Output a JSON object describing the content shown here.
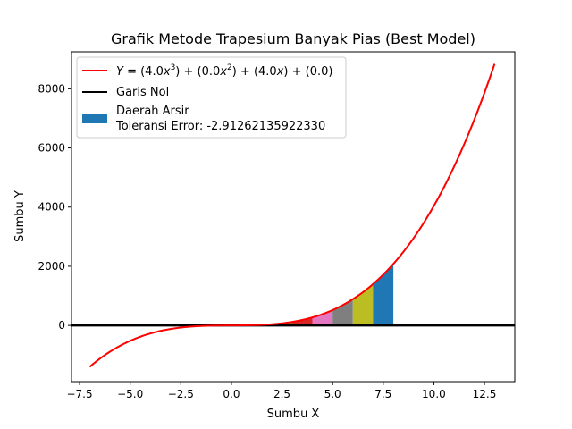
{
  "chart_data": {
    "type": "line",
    "title": "Grafik Metode Trapesium Banyak Pias (Best Model)",
    "xlabel": "Sumbu X",
    "ylabel": "Sumbu Y",
    "xlim": [
      -7.9,
      14.0
    ],
    "ylim": [
      -1900,
      9250
    ],
    "xticks": [
      -7.5,
      -5.0,
      -2.5,
      0.0,
      2.5,
      5.0,
      7.5,
      10.0,
      12.5
    ],
    "xtick_labels": [
      "−7.5",
      "−5.0",
      "−2.5",
      "0.0",
      "2.5",
      "5.0",
      "7.5",
      "10.0",
      "12.5"
    ],
    "yticks": [
      0,
      2000,
      4000,
      6000,
      8000
    ],
    "ytick_labels": [
      "0",
      "2000",
      "4000",
      "6000",
      "8000"
    ],
    "curve": {
      "coefficients": [
        4.0,
        0.0,
        4.0,
        0.0
      ],
      "x_range": [
        -7,
        13
      ],
      "color": "#ff0000"
    },
    "zero_line": {
      "y": 0,
      "color": "#000000"
    },
    "trapezoids": [
      {
        "x0": 0,
        "x1": 1,
        "color": "#1f77b4"
      },
      {
        "x0": 1,
        "x1": 2,
        "color": "#ff7f0e"
      },
      {
        "x0": 2,
        "x1": 3,
        "color": "#2ca02c"
      },
      {
        "x0": 3,
        "x1": 4,
        "color": "#d62728"
      },
      {
        "x0": 4,
        "x1": 5,
        "color": "#e377c2"
      },
      {
        "x0": 5,
        "x1": 6,
        "color": "#7f7f7f"
      },
      {
        "x0": 6,
        "x1": 7,
        "color": "#bcbd22"
      },
      {
        "x0": 7,
        "x1": 8,
        "color": "#1f77b4"
      }
    ],
    "legend": {
      "placement": "upper-left",
      "entries": [
        {
          "kind": "line",
          "color": "#ff0000"
        },
        {
          "kind": "line",
          "color": "#000000",
          "label": "Garis Nol"
        },
        {
          "kind": "patch",
          "color": "#1f77b4",
          "label_line1": "Daerah Arsir",
          "label_line2": "Toleransi Error: -2.91262135922330"
        }
      ]
    }
  }
}
